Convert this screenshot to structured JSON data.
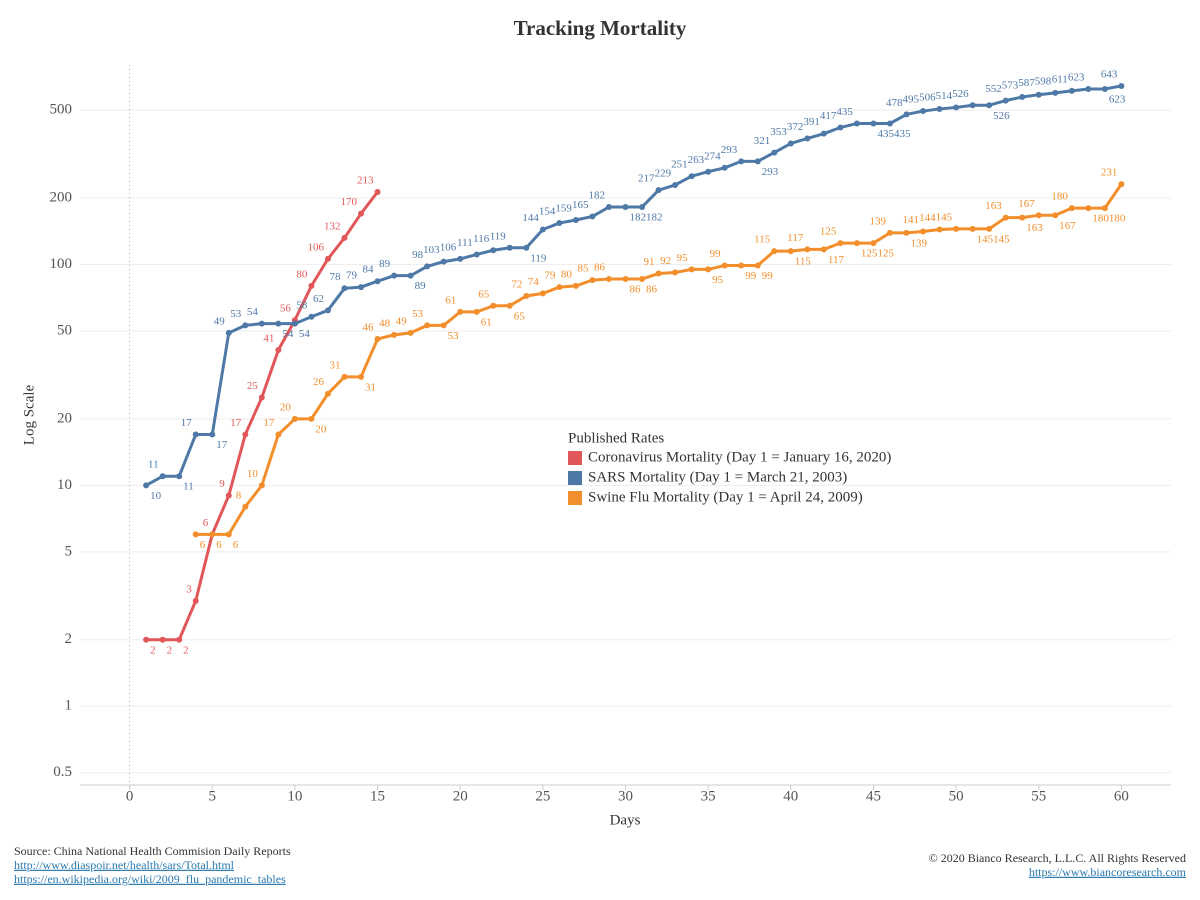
{
  "chart_data": {
    "type": "line",
    "title": "Tracking Mortality",
    "x_label": "Days",
    "y_label": "Log Scale",
    "log_scale": true,
    "grid": true,
    "legend_title": "Published Rates",
    "legend_position": "center",
    "xlim": [
      -3,
      63
    ],
    "xticks": [
      0,
      5,
      10,
      15,
      20,
      25,
      30,
      35,
      40,
      45,
      50,
      55,
      60
    ],
    "ylim": [
      0.44,
      800
    ],
    "yticks": [
      0.5,
      1,
      2,
      5,
      10,
      20,
      50,
      100,
      200,
      500
    ],
    "series": [
      {
        "name": "Coronavirus Mortality (Day 1 = January 16, 2020)",
        "color": "#e15759",
        "x": [
          1,
          2,
          3,
          4,
          5,
          6,
          7,
          8,
          9,
          10,
          11,
          12,
          13,
          14,
          15
        ],
        "values": [
          2,
          2,
          2,
          3,
          6,
          9,
          17,
          25,
          41,
          56,
          80,
          106,
          132,
          170,
          213
        ]
      },
      {
        "name": "SARS Mortality  (Day 1 = March 21, 2003)",
        "color": "#4e79a7",
        "x": [
          1,
          2,
          3,
          4,
          5,
          6,
          7,
          8,
          9,
          10,
          11,
          12,
          13,
          14,
          15,
          16,
          17,
          18,
          19,
          20,
          21,
          22,
          23,
          24,
          25,
          26,
          27,
          28,
          29,
          30,
          31,
          32,
          33,
          34,
          35,
          36,
          37,
          38,
          39,
          40,
          41,
          42,
          43,
          44,
          45,
          46,
          47,
          48,
          49,
          50,
          51,
          52,
          53,
          54,
          55,
          56,
          57,
          58,
          59,
          60
        ],
        "values": [
          10,
          11,
          11,
          17,
          17,
          49,
          53,
          54,
          54,
          54,
          58,
          62,
          78,
          79,
          84,
          89,
          89,
          98,
          103,
          106,
          111,
          116,
          119,
          119,
          144,
          154,
          159,
          165,
          182,
          182,
          182,
          217,
          229,
          251,
          263,
          274,
          293,
          293,
          321,
          353,
          372,
          391,
          417,
          435,
          435,
          435,
          478,
          495,
          506,
          514,
          526,
          526,
          552,
          573,
          587,
          598,
          611,
          623,
          623,
          643
        ]
      },
      {
        "name": "Swine Flu Mortality  (Day 1 = April 24, 2009)",
        "color": "#f28e2b",
        "x": [
          4,
          5,
          6,
          7,
          8,
          9,
          10,
          11,
          12,
          13,
          14,
          15,
          16,
          17,
          18,
          19,
          20,
          21,
          22,
          23,
          24,
          25,
          26,
          27,
          28,
          29,
          30,
          31,
          32,
          33,
          34,
          35,
          36,
          37,
          38,
          39,
          40,
          41,
          42,
          43,
          44,
          45,
          46,
          47,
          48,
          49,
          50,
          51,
          52,
          53,
          54,
          55,
          56,
          57,
          58,
          59,
          60
        ],
        "values": [
          6,
          6,
          6,
          8,
          10,
          17,
          20,
          20,
          26,
          31,
          31,
          46,
          48,
          49,
          53,
          53,
          61,
          61,
          65,
          65,
          72,
          74,
          79,
          80,
          85,
          86,
          86,
          86,
          91,
          92,
          95,
          95,
          99,
          99,
          99,
          115,
          115,
          117,
          117,
          125,
          125,
          125,
          139,
          139,
          141,
          144,
          145,
          145,
          145,
          163,
          163,
          167,
          167,
          180,
          180,
          180,
          231
        ]
      }
    ]
  },
  "footer": {
    "source": "Source: China National Health Commision Daily Reports",
    "links": [
      "http://www.diaspoir.net/health/sars/Total.html",
      "https://en.wikipedia.org/wiki/2009_flu_pandemic_tables"
    ],
    "copyright": "© 2020 Bianco Research, L.L.C. All Rights Reserved",
    "website": "https://www.biancoresearch.com"
  }
}
